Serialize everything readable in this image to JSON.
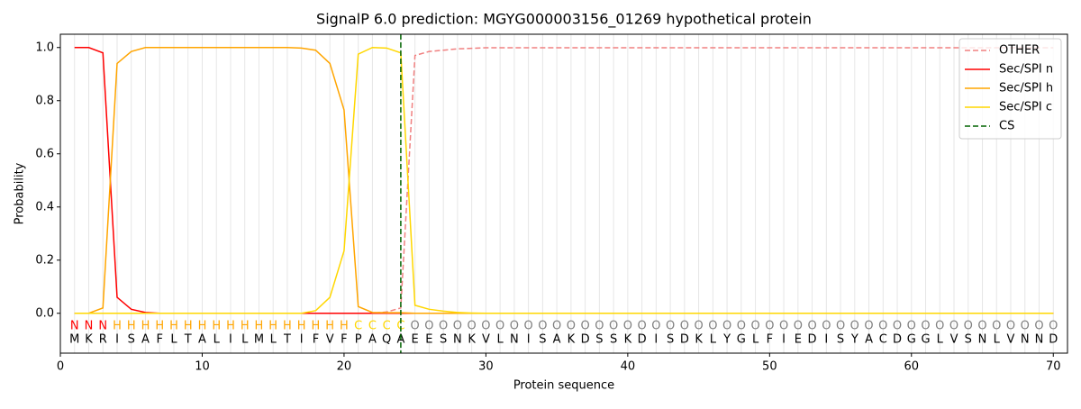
{
  "chart_data": {
    "type": "line",
    "title": "SignalP 6.0 prediction: MGYG000003156_01269 hypothetical protein",
    "x_label": "Protein sequence",
    "y_label": "Probability",
    "xlim": [
      0,
      71
    ],
    "ylim": [
      -0.15,
      1.05
    ],
    "xticks": [
      0,
      10,
      20,
      30,
      40,
      50,
      60,
      70
    ],
    "yticks": [
      {
        "value": 0,
        "label": "0.0"
      },
      {
        "value": 0.2,
        "label": "0.2"
      },
      {
        "value": 0.4,
        "label": "0.4"
      },
      {
        "value": 0.6,
        "label": "0.6"
      },
      {
        "value": 0.8,
        "label": "0.8"
      },
      {
        "value": 1,
        "label": "1.0"
      }
    ],
    "grid": true,
    "legend_position": "upper right",
    "x": [
      1,
      2,
      3,
      4,
      5,
      6,
      7,
      8,
      9,
      10,
      11,
      12,
      13,
      14,
      15,
      16,
      17,
      18,
      19,
      20,
      21,
      22,
      23,
      24,
      25,
      26,
      27,
      28,
      29,
      30,
      31,
      32,
      33,
      34,
      35,
      36,
      37,
      38,
      39,
      40,
      41,
      42,
      43,
      44,
      45,
      46,
      47,
      48,
      49,
      50,
      51,
      52,
      53,
      54,
      55,
      56,
      57,
      58,
      59,
      60,
      61,
      62,
      63,
      64,
      65,
      66,
      67,
      68,
      69,
      70
    ],
    "residues": [
      "M",
      "K",
      "R",
      "I",
      "S",
      "A",
      "F",
      "L",
      "T",
      "A",
      "L",
      "I",
      "L",
      "M",
      "L",
      "T",
      "I",
      "F",
      "V",
      "F",
      "P",
      "A",
      "Q",
      "A",
      "E",
      "E",
      "S",
      "N",
      "K",
      "V",
      "L",
      "N",
      "I",
      "S",
      "A",
      "K",
      "D",
      "S",
      "S",
      "K",
      "D",
      "I",
      "S",
      "D",
      "K",
      "L",
      "Y",
      "G",
      "L",
      "F",
      "I",
      "E",
      "D",
      "I",
      "S",
      "Y",
      "A",
      "C",
      "D",
      "G",
      "G",
      "L",
      "V",
      "S",
      "N",
      "L",
      "V",
      "N",
      "N",
      "D"
    ],
    "region_labels": [
      "N",
      "N",
      "N",
      "H",
      "H",
      "H",
      "H",
      "H",
      "H",
      "H",
      "H",
      "H",
      "H",
      "H",
      "H",
      "H",
      "H",
      "H",
      "H",
      "H",
      "C",
      "C",
      "C",
      "C",
      "O",
      "O",
      "O",
      "O",
      "O",
      "O",
      "O",
      "O",
      "O",
      "O",
      "O",
      "O",
      "O",
      "O",
      "O",
      "O",
      "O",
      "O",
      "O",
      "O",
      "O",
      "O",
      "O",
      "O",
      "O",
      "O",
      "O",
      "O",
      "O",
      "O",
      "O",
      "O",
      "O",
      "O",
      "O",
      "O",
      "O",
      "O",
      "O",
      "O",
      "O",
      "O",
      "O",
      "O",
      "O",
      "O"
    ],
    "region_label_colors": {
      "N": "#ff0000",
      "H": "#ffa500",
      "C": "#ffd700",
      "O": "#808080"
    },
    "series": [
      {
        "name": "OTHER",
        "color": "#f08080",
        "dashed": true,
        "values": [
          0,
          0,
          0,
          0,
          0,
          0,
          0,
          0,
          0,
          0,
          0,
          0,
          0,
          0,
          0,
          0,
          0,
          0,
          0,
          0,
          0,
          0,
          0.005,
          0.02,
          0.97,
          0.985,
          0.99,
          0.995,
          0.997,
          0.999,
          0.999,
          0.999,
          0.999,
          0.999,
          0.999,
          0.999,
          0.999,
          0.999,
          0.999,
          0.999,
          0.999,
          0.999,
          0.999,
          0.999,
          0.999,
          0.999,
          0.999,
          0.999,
          0.999,
          0.999,
          0.999,
          0.999,
          0.999,
          0.999,
          0.999,
          0.999,
          0.999,
          0.999,
          0.999,
          0.999,
          0.999,
          0.999,
          0.999,
          0.999,
          0.999,
          0.999,
          0.999,
          0.999,
          0.999,
          0.999
        ]
      },
      {
        "name": "Sec/SPI n",
        "color": "#ff0000",
        "dashed": false,
        "values": [
          1,
          1,
          0.98,
          0.06,
          0.015,
          0.003,
          0,
          0,
          0,
          0,
          0,
          0,
          0,
          0,
          0,
          0,
          0,
          0,
          0,
          0,
          0,
          0,
          0,
          0,
          0,
          0,
          0,
          0,
          0,
          0,
          0,
          0,
          0,
          0,
          0,
          0,
          0,
          0,
          0,
          0,
          0,
          0,
          0,
          0,
          0,
          0,
          0,
          0,
          0,
          0,
          0,
          0,
          0,
          0,
          0,
          0,
          0,
          0,
          0,
          0,
          0,
          0,
          0,
          0,
          0,
          0,
          0,
          0,
          0,
          0
        ]
      },
      {
        "name": "Sec/SPI h",
        "color": "#ffa500",
        "dashed": false,
        "values": [
          0,
          0,
          0.02,
          0.94,
          0.985,
          1,
          1,
          1,
          1,
          1,
          1,
          1,
          1,
          1,
          1,
          1,
          0.998,
          0.99,
          0.94,
          0.765,
          0.025,
          0.003,
          0.002,
          0.002,
          0,
          0,
          0,
          0,
          0,
          0,
          0,
          0,
          0,
          0,
          0,
          0,
          0,
          0,
          0,
          0,
          0,
          0,
          0,
          0,
          0,
          0,
          0,
          0,
          0,
          0,
          0,
          0,
          0,
          0,
          0,
          0,
          0,
          0,
          0,
          0,
          0,
          0,
          0,
          0,
          0,
          0,
          0,
          0,
          0,
          0
        ]
      },
      {
        "name": "Sec/SPI c",
        "color": "#ffd700",
        "dashed": false,
        "values": [
          0,
          0,
          0,
          0,
          0,
          0,
          0,
          0,
          0,
          0,
          0,
          0,
          0,
          0,
          0,
          0,
          0,
          0.01,
          0.06,
          0.235,
          0.975,
          1,
          0.998,
          0.98,
          0.03,
          0.015,
          0.008,
          0.003,
          0.001,
          0,
          0,
          0,
          0,
          0,
          0,
          0,
          0,
          0,
          0,
          0,
          0,
          0,
          0,
          0,
          0,
          0,
          0,
          0,
          0,
          0,
          0,
          0,
          0,
          0,
          0,
          0,
          0,
          0,
          0,
          0,
          0,
          0,
          0,
          0,
          0,
          0,
          0,
          0,
          0,
          0
        ]
      }
    ],
    "vlines": [
      {
        "name": "CS",
        "color": "#006400",
        "x": 24
      }
    ]
  }
}
